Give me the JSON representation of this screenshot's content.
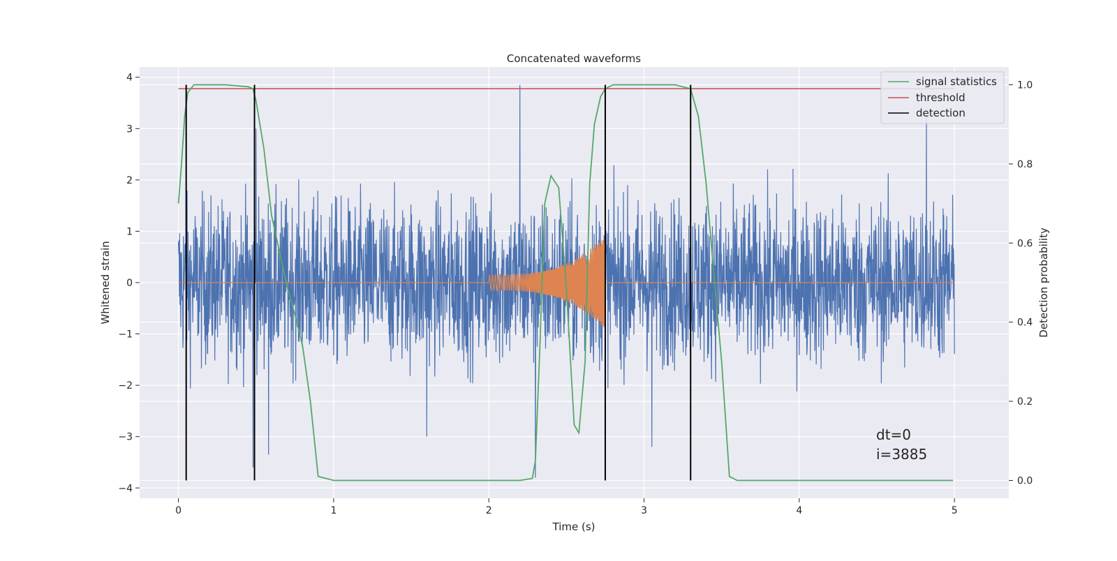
{
  "chart_data": {
    "type": "line",
    "title": "Concatenated waveforms",
    "xlabel": "Time (s)",
    "ylabel": "Whitened strain",
    "ylabel_right": "Detection probability",
    "xlim": [
      -0.25,
      5.35
    ],
    "ylim": [
      -4.2,
      4.2
    ],
    "ylim_right": [
      -0.045,
      1.045
    ],
    "xticks": [
      0,
      1,
      2,
      3,
      4,
      5
    ],
    "xtick_labels": [
      "0",
      "1",
      "2",
      "3",
      "4",
      "5"
    ],
    "yticks": [
      -4,
      -3,
      -2,
      -1,
      0,
      1,
      2,
      3,
      4
    ],
    "ytick_labels": [
      "−4",
      "−3",
      "−2",
      "−1",
      "0",
      "1",
      "2",
      "3",
      "4"
    ],
    "yticks_right": [
      0.0,
      0.2,
      0.4,
      0.6,
      0.8,
      1.0
    ],
    "ytick_right_labels": [
      "0.0",
      "0.2",
      "0.4",
      "0.6",
      "0.8",
      "1.0"
    ],
    "grid": true,
    "legend_position": "top-right",
    "colors": {
      "strain": "#4c72b0",
      "injection": "#dd8452",
      "signal_statistics": "#55a868",
      "threshold": "#c44e52",
      "detection": "#000000",
      "background": "#eaeaf2"
    },
    "series": [
      {
        "kind": "noise",
        "axis": "left",
        "x_range": [
          0,
          5
        ],
        "envelope": 2.6,
        "peak_spikes": [
          {
            "x": 0.48,
            "y": -3.6
          },
          {
            "x": 0.5,
            "y": 3.0
          },
          {
            "x": 0.58,
            "y": -3.35
          },
          {
            "x": 2.2,
            "y": 3.85
          },
          {
            "x": 2.3,
            "y": -3.8
          },
          {
            "x": 4.82,
            "y": 3.3
          },
          {
            "x": 3.05,
            "y": -3.2
          },
          {
            "x": 1.6,
            "y": -3.0
          }
        ]
      },
      {
        "kind": "chirp",
        "axis": "left",
        "x_range": [
          2.0,
          2.75
        ],
        "amplitude_start": 0.15,
        "amplitude_end": 0.9
      },
      {
        "name": "signal statistics",
        "axis": "right",
        "x": [
          0,
          0.02,
          0.04,
          0.06,
          0.1,
          0.2,
          0.3,
          0.45,
          0.48,
          0.5,
          0.55,
          0.6,
          0.65,
          0.7,
          0.75,
          0.8,
          0.85,
          0.9,
          1.0,
          1.5,
          2.0,
          2.2,
          2.28,
          2.3,
          2.33,
          2.36,
          2.4,
          2.45,
          2.5,
          2.55,
          2.58,
          2.62,
          2.65,
          2.68,
          2.72,
          2.75,
          2.8,
          2.9,
          3.0,
          3.1,
          3.2,
          3.3,
          3.35,
          3.4,
          3.45,
          3.5,
          3.55,
          3.6,
          3.7,
          3.8,
          4.0,
          4.5,
          4.99
        ],
        "values": [
          0.7,
          0.8,
          0.92,
          0.98,
          1.0,
          1.0,
          1.0,
          0.995,
          0.99,
          0.96,
          0.84,
          0.67,
          0.58,
          0.49,
          0.42,
          0.34,
          0.2,
          0.01,
          0.0,
          0.0,
          0.0,
          0.0,
          0.005,
          0.05,
          0.35,
          0.7,
          0.77,
          0.74,
          0.48,
          0.14,
          0.12,
          0.3,
          0.75,
          0.9,
          0.97,
          0.99,
          1.0,
          1.0,
          1.0,
          1.0,
          1.0,
          0.99,
          0.92,
          0.75,
          0.52,
          0.3,
          0.01,
          0.0,
          0.0,
          0.0,
          0.0,
          0.0,
          0.0
        ]
      },
      {
        "name": "threshold",
        "axis": "right",
        "x": [
          0,
          5
        ],
        "values": [
          0.99,
          0.99
        ]
      },
      {
        "name": "detection",
        "axis": "right",
        "x": [
          0.05,
          0.49,
          2.75,
          3.3
        ],
        "y_range": [
          0.0,
          1.0
        ]
      }
    ],
    "annotations": [
      "dt=0",
      "i=3885"
    ]
  }
}
